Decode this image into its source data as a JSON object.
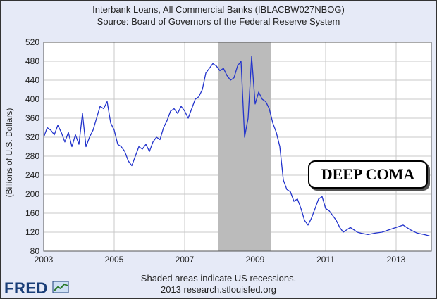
{
  "chart_data": {
    "type": "line",
    "title": "Interbank Loans, All Commercial Banks (IBLACBW027NBOG)",
    "subtitle": "Source: Board of Governors of the Federal Reserve System",
    "ylabel": "(Billions of U.S. Dollars)",
    "xlabel": "",
    "xlim": [
      2003.0,
      2014.0
    ],
    "ylim": [
      80,
      520
    ],
    "x_ticks": [
      "2003",
      "2005",
      "2007",
      "2009",
      "2011",
      "2013"
    ],
    "y_ticks": [
      "80",
      "120",
      "160",
      "200",
      "240",
      "280",
      "320",
      "360",
      "400",
      "440",
      "480",
      "520"
    ],
    "grid": true,
    "series_color": "#2233cc",
    "recession": {
      "start": 2007.95,
      "end": 2009.45,
      "color": "#bbbbbb"
    },
    "annotation": "DEEP COMA",
    "notes": [
      "Shaded areas indicate US recessions.",
      "2013 research.stlouisfed.org"
    ],
    "series": [
      {
        "x": [
          2003.0,
          2003.1,
          2003.2,
          2003.3,
          2003.4,
          2003.5,
          2003.6,
          2003.7,
          2003.8,
          2003.9,
          2004.0,
          2004.1,
          2004.2,
          2004.3,
          2004.4,
          2004.5,
          2004.6,
          2004.7,
          2004.8,
          2004.9,
          2005.0,
          2005.1,
          2005.2,
          2005.3,
          2005.4,
          2005.5,
          2005.6,
          2005.7,
          2005.8,
          2005.9,
          2006.0,
          2006.1,
          2006.2,
          2006.3,
          2006.4,
          2006.5,
          2006.6,
          2006.7,
          2006.8,
          2006.9,
          2007.0,
          2007.1,
          2007.2,
          2007.3,
          2007.4,
          2007.5,
          2007.6,
          2007.7,
          2007.8,
          2007.9,
          2008.0,
          2008.1,
          2008.2,
          2008.3,
          2008.4,
          2008.5,
          2008.6,
          2008.7,
          2008.8,
          2008.9,
          2009.0,
          2009.1,
          2009.2,
          2009.3,
          2009.4,
          2009.5,
          2009.6,
          2009.7,
          2009.8,
          2009.9,
          2010.0,
          2010.1,
          2010.2,
          2010.3,
          2010.4,
          2010.5,
          2010.6,
          2010.7,
          2010.8,
          2010.9,
          2011.0,
          2011.1,
          2011.2,
          2011.3,
          2011.4,
          2011.5,
          2011.6,
          2011.7,
          2011.8,
          2011.9,
          2012.0,
          2012.2,
          2012.4,
          2012.6,
          2012.8,
          2013.0,
          2013.2,
          2013.4,
          2013.6,
          2013.8,
          2013.95
        ],
        "y": [
          320,
          340,
          335,
          325,
          345,
          330,
          310,
          330,
          300,
          325,
          305,
          370,
          300,
          320,
          335,
          360,
          385,
          380,
          395,
          350,
          335,
          305,
          300,
          290,
          270,
          260,
          280,
          300,
          295,
          305,
          290,
          310,
          320,
          315,
          340,
          355,
          375,
          380,
          370,
          385,
          375,
          360,
          380,
          400,
          405,
          420,
          455,
          465,
          475,
          470,
          460,
          465,
          450,
          440,
          445,
          470,
          480,
          320,
          360,
          490,
          390,
          415,
          400,
          395,
          380,
          350,
          330,
          300,
          230,
          210,
          205,
          185,
          190,
          170,
          145,
          135,
          150,
          170,
          190,
          195,
          170,
          165,
          155,
          145,
          130,
          120,
          125,
          130,
          125,
          120,
          118,
          115,
          118,
          120,
          125,
          130,
          135,
          125,
          118,
          115,
          112
        ]
      }
    ]
  }
}
